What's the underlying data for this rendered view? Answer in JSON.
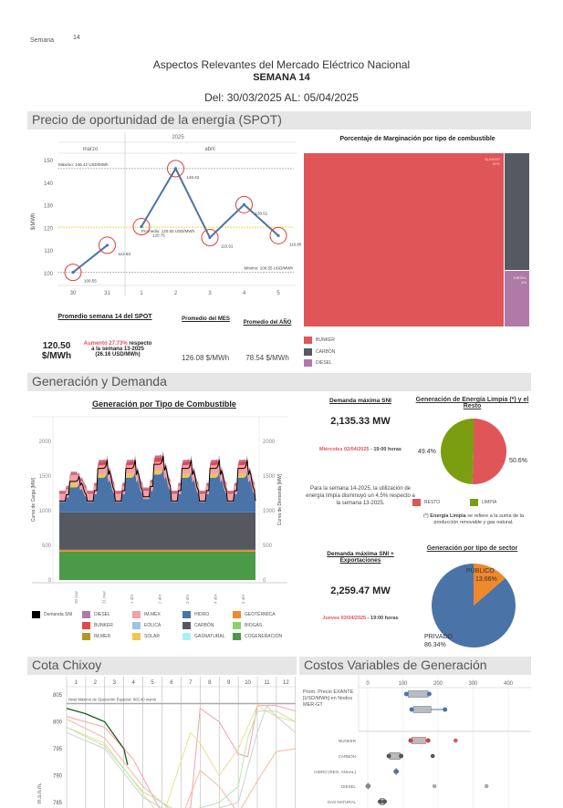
{
  "header": {
    "week_label": "Semana",
    "week_number": "14",
    "title": "Aspectos Relevantes del Mercado Eléctrico Nacional",
    "subtitle": "SEMANA 14",
    "date_range": "Del: 30/03/2025  AL: 05/04/2025"
  },
  "spot": {
    "section": "Precio de oportunidad de la energía (SPOT)",
    "chart_data": {
      "type": "line",
      "year": "2025",
      "months": [
        "marzo",
        "abril"
      ],
      "categories": [
        "30",
        "31",
        "1",
        "2",
        "3",
        "4",
        "5"
      ],
      "values": [
        100.55,
        112.53,
        120.75,
        146.42,
        115.91,
        130.51,
        116.8
      ],
      "value_labels": [
        "100.55",
        "112.53",
        "120.75",
        "146.42",
        "115.91",
        "130.51",
        "116.80"
      ],
      "ylabel": "$/MWh",
      "ylim": [
        97,
        152
      ],
      "yticks": [
        "100",
        "110",
        "120",
        "130",
        "140",
        "150"
      ],
      "annotations": {
        "max": "Máximo: 146.42 USD/MWh",
        "avg": "Promedio: 120.50 USD/MWh",
        "min": "Mínimo: 100.55 USD/MWh"
      },
      "colors": {
        "line": "#4a74a8",
        "marker": "#e03c3c",
        "avg": "#e8d84a"
      }
    },
    "weekly_avg_title": "Promedio semana 14 del SPOT",
    "weekly_avg_value": "120.50",
    "weekly_avg_unit": "$/MWh",
    "change_highlight": "Aumentó 27.73%",
    "change_rest": " respecto a la semana 13-2025",
    "change_abs": "(26.16 USD/MWh)",
    "month_avg_title": "Promedio del MES",
    "month_avg_value": "126.08 $/MWh",
    "year_avg_title": "Promedio del AÑO",
    "year_avg_value": "78.54 $/MWh"
  },
  "margin": {
    "title": "Porcentaje de Marginación por tipo de combustible",
    "chart_data": {
      "type": "treemap",
      "items": [
        {
          "name": "BUNKER",
          "value": 89,
          "label": "89%",
          "color": "#e05558"
        },
        {
          "name": "CARBÓN",
          "value": 7,
          "color": "#555a62"
        },
        {
          "name": "DIESEL",
          "value": 4,
          "label": "4%",
          "color": "#b07aa8"
        }
      ]
    },
    "legend": [
      "BUNKER",
      "CARBÓN",
      "DIESEL"
    ]
  },
  "gen": {
    "section": "Generación y Demanda",
    "title": "Generación por Tipo de Combustible",
    "ylabel_left": "Curva de Carga [MW]",
    "ylabel_right": "Curva de Demanda [MW]",
    "yticks": [
      "0",
      "500",
      "1000",
      "1500",
      "2000"
    ],
    "xticks": [
      "30 mar",
      "31 mar",
      "1 abr",
      "2 abr",
      "3 abr",
      "4 abr",
      "5 abr"
    ],
    "legend": [
      {
        "name": "Demanda SNI",
        "color": "#000000"
      },
      {
        "name": "DIESEL",
        "color": "#b07aa8"
      },
      {
        "name": "IM.MEX",
        "color": "#f4a0a8"
      },
      {
        "name": "HIDRO",
        "color": "#4a74a8"
      },
      {
        "name": "GEOTÉRMICA",
        "color": "#f0882c"
      },
      {
        "name": "BUNKER",
        "color": "#e04a4a"
      },
      {
        "name": "EÓLICA",
        "color": "#9cc4e4"
      },
      {
        "name": "CARBÓN",
        "color": "#55585e"
      },
      {
        "name": "BIOGAS",
        "color": "#8cd070"
      },
      {
        "name": "IM.MER",
        "color": "#b09a20"
      },
      {
        "name": "SOLAR",
        "color": "#f0c850"
      },
      {
        "name": "GASNATURAL",
        "color": "#a8f0f4"
      },
      {
        "name": "COGENERACIÓN",
        "color": "#4a9a48"
      }
    ]
  },
  "demand": {
    "max_title": "Demanda máxima SNI",
    "max_value": "2,135.33 MW",
    "max_date": "Miércoles 02/04/2025",
    "max_time": " - 19:00 horas",
    "note": "Para la semana 14-2025,  la utilización de energía limpia disminuyó un 4.5% respecto a la semana 13-2025.",
    "exp_title": "Demanda máxima SNI + Exportaciones",
    "exp_value": "2,259.47 MW",
    "exp_date": "Jueves 03/04/2025",
    "exp_time": " - 19:00 horas"
  },
  "clean": {
    "title": "Generación de Energía Limpia (*) y el Resto",
    "chart_data": {
      "type": "pie",
      "slices": [
        {
          "name": "RESTO",
          "value": 50.6,
          "label": "50.6%",
          "color": "#e05558"
        },
        {
          "name": "LIMPIA",
          "value": 49.4,
          "label": "49.4%",
          "color": "#7a9e10"
        }
      ]
    },
    "footnote_pre": "(*) ",
    "footnote_bold": "Energía Limpia",
    "footnote_rest": " se refiere a la suma de la producción renovable y gas natural."
  },
  "sector": {
    "title": "Generación por tipo de sector",
    "chart_data": {
      "type": "pie",
      "slices": [
        {
          "name": "PÚBLICO",
          "value": 13.66,
          "label": "13.66%",
          "color": "#f0882c"
        },
        {
          "name": "PRIVADO",
          "value": 86.34,
          "label": "86.34%",
          "color": "#4a74a8"
        }
      ]
    }
  },
  "chixoy": {
    "section": "Cota Chixoy",
    "months": [
      "1",
      "2",
      "3",
      "4",
      "5",
      "6",
      "7",
      "8",
      "9",
      "10",
      "11",
      "12"
    ],
    "yticks": [
      "785",
      "790",
      "795",
      "800",
      "805"
    ],
    "ylabel": "m.s.n.m.",
    "max_label": "Nivel Máximo de Operación Especial: 803.40 msnm"
  },
  "costs": {
    "section": "Costos Variables de Generación",
    "xticks": [
      "0",
      "100",
      "200",
      "300",
      "400"
    ],
    "exante_label": "Prom. Precio EXANTE [USD/MWh] en Nodos MER-GT",
    "rows": [
      "BUNKER",
      "CARBÓN",
      "HIDRO (REG. ANUAL)",
      "DIESEL",
      "GAS NATURAL"
    ]
  }
}
